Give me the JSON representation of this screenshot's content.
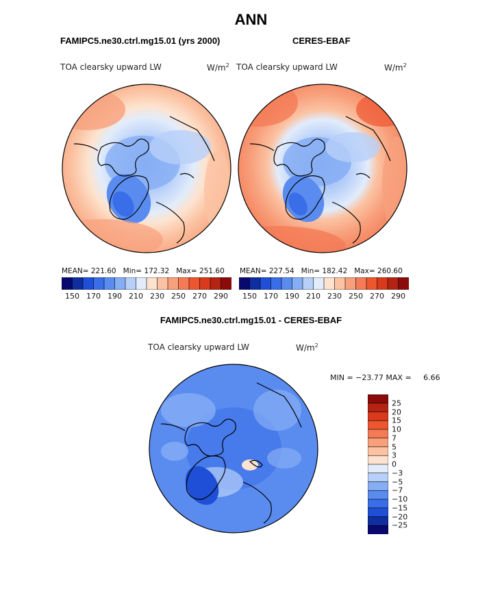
{
  "title": "ANN",
  "panels": [
    {
      "name": "FAMIPC5.ne30.ctrl.mg15.01 (yrs 2000)",
      "field": "TOA clearsky upward LW",
      "unit_base": "W/m",
      "unit_exp": "2",
      "stats": {
        "mean_label": "MEAN=",
        "mean": "221.60",
        "min_label": "Min=",
        "min": "172.32",
        "max_label": "Max=",
        "max": "251.60"
      }
    },
    {
      "name": "CERES-EBAF",
      "field": "TOA clearsky upward LW",
      "unit_base": "W/m",
      "unit_exp": "2",
      "stats": {
        "mean_label": "MEAN=",
        "mean": "227.54",
        "min_label": "Min=",
        "min": "182.42",
        "max_label": "Max=",
        "max": "260.60"
      }
    }
  ],
  "abs_colorbar": {
    "colors": [
      "#08086e",
      "#0f2fa0",
      "#1f4fd6",
      "#3a6ee8",
      "#5a8cf0",
      "#86aef5",
      "#b8d0f9",
      "#e2ecfb",
      "#fde3cf",
      "#fbc3a3",
      "#f8a07c",
      "#f47b56",
      "#ee5630",
      "#d93a1b",
      "#b52312",
      "#8b0a0a"
    ],
    "ticks": [
      "150",
      "170",
      "190",
      "210",
      "230",
      "250",
      "270",
      "290"
    ]
  },
  "diff": {
    "name": "FAMIPC5.ne30.ctrl.mg15.01 - CERES-EBAF",
    "field": "TOA clearsky upward LW",
    "unit_base": "W/m",
    "unit_exp": "2",
    "min_label": "MIN =",
    "min": "−23.77",
    "max_label": "MAX =",
    "max": "6.66",
    "colorbar": {
      "colors": [
        "#8b0a0a",
        "#b52312",
        "#d93a1b",
        "#ee5630",
        "#f47b56",
        "#f8a07c",
        "#fbc3a3",
        "#fde3cf",
        "#e2ecfb",
        "#b8d0f9",
        "#86aef5",
        "#5a8cf0",
        "#3a6ee8",
        "#1f4fd6",
        "#0f2fa0",
        "#08086e"
      ],
      "ticks": [
        "25",
        "20",
        "15",
        "10",
        "7",
        "5",
        "3",
        "0",
        "−3",
        "−5",
        "−7",
        "−10",
        "−15",
        "−20",
        "−25"
      ]
    }
  }
}
